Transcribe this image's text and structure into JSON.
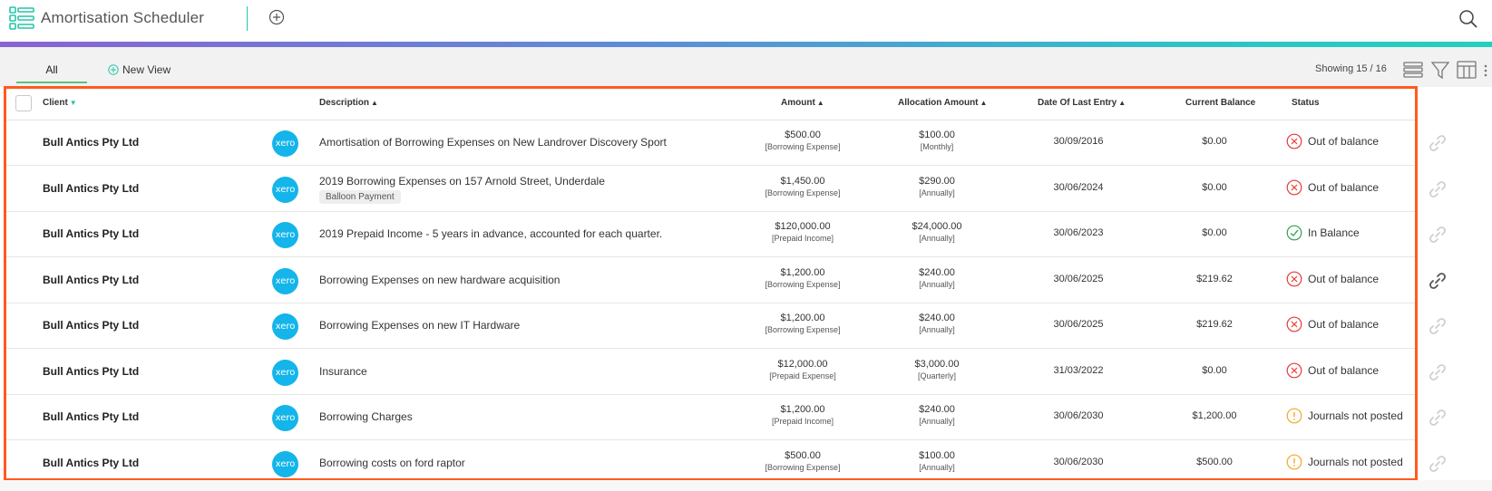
{
  "header": {
    "app_title": "Amortisation Scheduler",
    "icons": {
      "app": "list-grid-icon",
      "add": "add-circle-icon",
      "search": "search-icon"
    }
  },
  "colors": {
    "accent": "#1ec9b0",
    "selection_frame": "#ff5a1f",
    "xero": "#13b5ea",
    "status_error": "#e53935",
    "status_ok": "#2e9e4f",
    "status_warn": "#f5a623"
  },
  "toolbar": {
    "tabs": [
      {
        "label": "All"
      }
    ],
    "new_view_label": "New View",
    "showing_text": "Showing 15 / 16",
    "icons": [
      "density-icon",
      "filter-icon",
      "columns-icon"
    ]
  },
  "table": {
    "columns": {
      "client": "Client",
      "description": "Description",
      "amount": "Amount",
      "allocation": "Allocation Amount",
      "date": "Date Of Last Entry",
      "balance": "Current Balance",
      "status": "Status"
    },
    "rows": [
      {
        "client": "Bull Antics Pty Ltd",
        "logo": "xero",
        "description": "Amortisation of Borrowing Expenses on New Landrover Discovery Sport",
        "tag": "",
        "amount": "$500.00",
        "amount_type": "[Borrowing Expense]",
        "allocation": "$100.00",
        "frequency": "[Monthly]",
        "date": "30/09/2016",
        "balance": "$0.00",
        "status": "Out of balance",
        "status_kind": "error"
      },
      {
        "client": "Bull Antics Pty Ltd",
        "logo": "xero",
        "description": "2019 Borrowing Expenses on 157 Arnold Street, Underdale",
        "tag": "Balloon Payment",
        "amount": "$1,450.00",
        "amount_type": "[Borrowing Expense]",
        "allocation": "$290.00",
        "frequency": "[Annually]",
        "date": "30/06/2024",
        "balance": "$0.00",
        "status": "Out of balance",
        "status_kind": "error"
      },
      {
        "client": "Bull Antics Pty Ltd",
        "logo": "xero",
        "description": "2019 Prepaid Income - 5 years in advance, accounted for each quarter.",
        "tag": "",
        "amount": "$120,000.00",
        "amount_type": "[Prepaid Income]",
        "allocation": "$24,000.00",
        "frequency": "[Annually]",
        "date": "30/06/2023",
        "balance": "$0.00",
        "status": "In Balance",
        "status_kind": "ok"
      },
      {
        "client": "Bull Antics Pty Ltd",
        "logo": "xero",
        "description": "Borrowing Expenses on new hardware acquisition",
        "tag": "",
        "amount": "$1,200.00",
        "amount_type": "[Borrowing Expense]",
        "allocation": "$240.00",
        "frequency": "[Annually]",
        "date": "30/06/2025",
        "balance": "$219.62",
        "status": "Out of balance",
        "status_kind": "error"
      },
      {
        "client": "Bull Antics Pty Ltd",
        "logo": "xero",
        "description": "Borrowing Expenses on new IT Hardware",
        "tag": "",
        "amount": "$1,200.00",
        "amount_type": "[Borrowing Expense]",
        "allocation": "$240.00",
        "frequency": "[Annually]",
        "date": "30/06/2025",
        "balance": "$219.62",
        "status": "Out of balance",
        "status_kind": "error"
      },
      {
        "client": "Bull Antics Pty Ltd",
        "logo": "xero",
        "description": "Insurance",
        "tag": "",
        "amount": "$12,000.00",
        "amount_type": "[Prepaid Expense]",
        "allocation": "$3,000.00",
        "frequency": "[Quarterly]",
        "date": "31/03/2022",
        "balance": "$0.00",
        "status": "Out of balance",
        "status_kind": "error"
      },
      {
        "client": "Bull Antics Pty Ltd",
        "logo": "xero",
        "description": "Borrowing Charges",
        "tag": "",
        "amount": "$1,200.00",
        "amount_type": "[Prepaid Income]",
        "allocation": "$240.00",
        "frequency": "[Annually]",
        "date": "30/06/2030",
        "balance": "$1,200.00",
        "status": "Journals not posted",
        "status_kind": "warn"
      },
      {
        "client": "Bull Antics Pty Ltd",
        "logo": "xero",
        "description": "Borrowing costs on ford raptor",
        "tag": "",
        "amount": "$500.00",
        "amount_type": "[Borrowing Expense]",
        "allocation": "$100.00",
        "frequency": "[Annually]",
        "date": "30/06/2030",
        "balance": "$500.00",
        "status": "Journals not posted",
        "status_kind": "warn"
      }
    ]
  }
}
